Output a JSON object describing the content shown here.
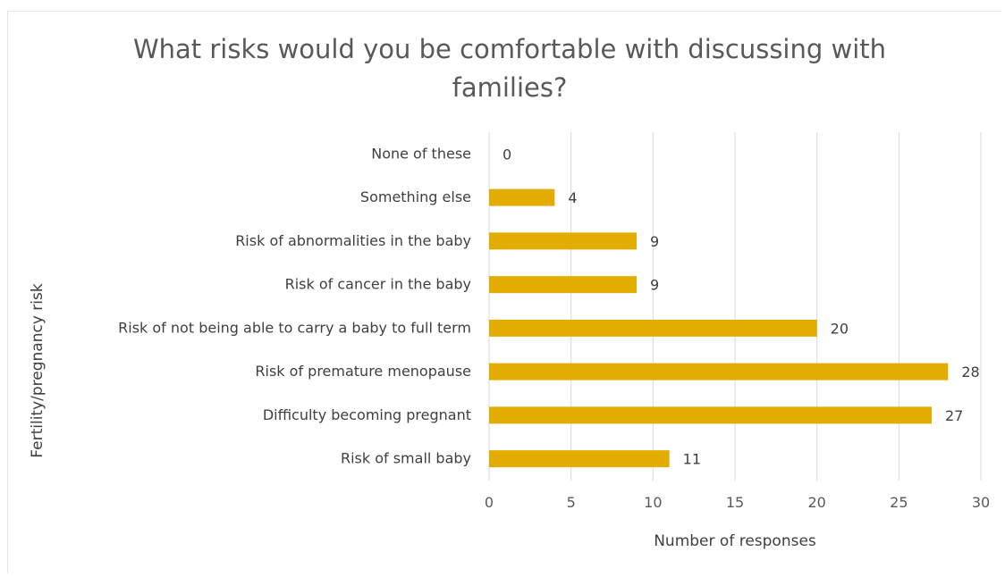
{
  "chart_data": {
    "type": "bar",
    "orientation": "horizontal",
    "title": "What risks would you be comfortable with discussing with families?",
    "title_lines": [
      "What risks would you be comfortable with discussing with",
      "families?"
    ],
    "xlabel": "Number of responses",
    "ylabel": "Fertility/pregnancy risk",
    "categories": [
      "None of these",
      "Something else",
      "Risk of abnormalities in the baby",
      "Risk of cancer in the baby",
      "Risk of not being able to carry a baby to full term",
      "Risk of premature menopause",
      "Difficulty becoming pregnant",
      "Risk of small baby"
    ],
    "values": [
      0,
      4,
      9,
      9,
      20,
      28,
      27,
      11
    ],
    "xlim": [
      0,
      30
    ],
    "xticks": [
      0,
      5,
      10,
      15,
      20,
      25,
      30
    ],
    "grid": "vertical",
    "legend": "none",
    "bar_color": "#E3AC00"
  }
}
